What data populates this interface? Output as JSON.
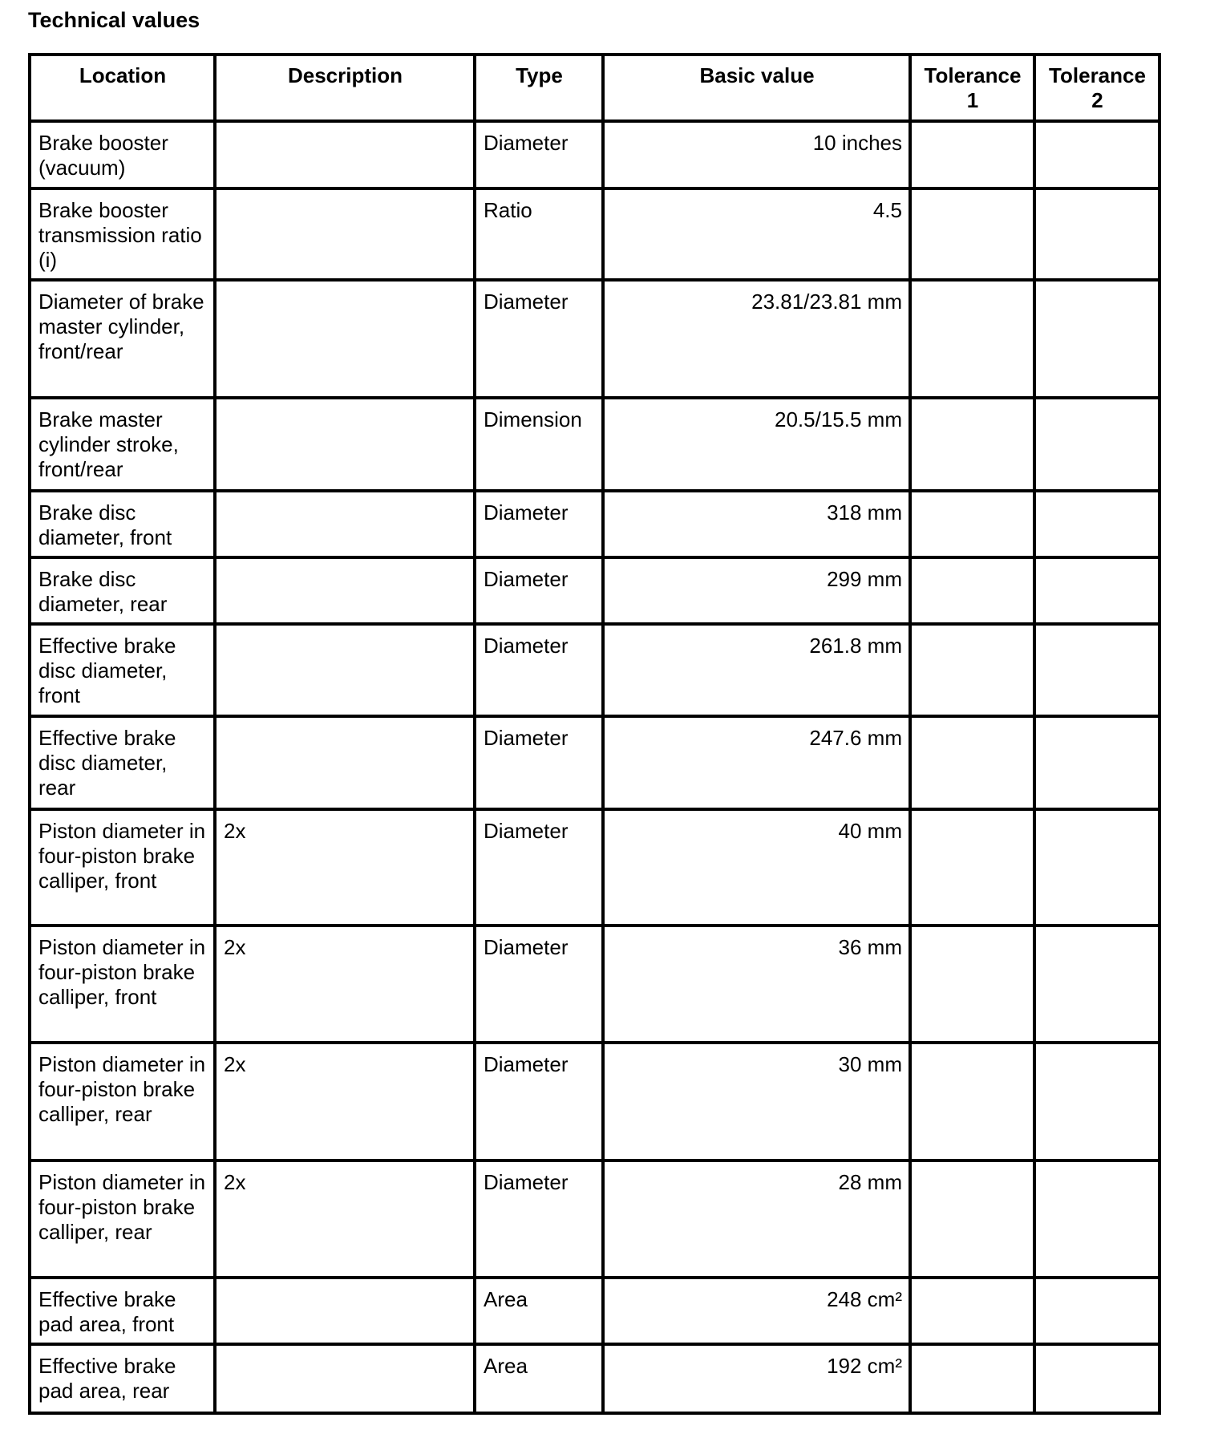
{
  "title": "Technical values",
  "columns": [
    "Location",
    "Description",
    "Type",
    "Basic value",
    "Tolerance 1",
    "Tolerance 2"
  ],
  "rows": [
    {
      "location": "Brake booster (vacuum)",
      "description": "",
      "type": "Diameter",
      "value": "10 inches",
      "tol1": "",
      "tol2": ""
    },
    {
      "location": "Brake booster transmission ratio (i)",
      "description": "",
      "type": "Ratio",
      "value": "4.5",
      "tol1": "",
      "tol2": ""
    },
    {
      "location": "Diameter of brake master cylinder, front/rear",
      "description": "",
      "type": "Diameter",
      "value": "23.81/23.81 mm",
      "tol1": "",
      "tol2": ""
    },
    {
      "location": "Brake master cylinder stroke, front/rear",
      "description": "",
      "type": "Dimension",
      "value": "20.5/15.5 mm",
      "tol1": "",
      "tol2": ""
    },
    {
      "location": "Brake disc diameter, front",
      "description": "",
      "type": "Diameter",
      "value": "318 mm",
      "tol1": "",
      "tol2": ""
    },
    {
      "location": "Brake disc diameter, rear",
      "description": "",
      "type": "Diameter",
      "value": "299 mm",
      "tol1": "",
      "tol2": ""
    },
    {
      "location": "Effective brake disc diameter, front",
      "description": "",
      "type": "Diameter",
      "value": "261.8 mm",
      "tol1": "",
      "tol2": ""
    },
    {
      "location": "Effective brake disc diameter, rear",
      "description": "",
      "type": "Diameter",
      "value": "247.6 mm",
      "tol1": "",
      "tol2": ""
    },
    {
      "location": "Piston diameter in four-piston brake calliper, front",
      "description": "2x",
      "type": "Diameter",
      "value": "40 mm",
      "tol1": "",
      "tol2": ""
    },
    {
      "location": "Piston diameter in four-piston brake calliper, front",
      "description": "2x",
      "type": "Diameter",
      "value": "36 mm",
      "tol1": "",
      "tol2": ""
    },
    {
      "location": "Piston diameter in four-piston brake calliper, rear",
      "description": "2x",
      "type": "Diameter",
      "value": "30 mm",
      "tol1": "",
      "tol2": ""
    },
    {
      "location": "Piston diameter in four-piston brake calliper, rear",
      "description": "2x",
      "type": "Diameter",
      "value": "28 mm",
      "tol1": "",
      "tol2": ""
    },
    {
      "location": "Effective brake pad area, front",
      "description": "",
      "type": "Area",
      "value": "248 cm²",
      "tol1": "",
      "tol2": ""
    },
    {
      "location": "Effective brake pad area, rear",
      "description": "",
      "type": "Area",
      "value": "192 cm²",
      "tol1": "",
      "tol2": ""
    }
  ]
}
